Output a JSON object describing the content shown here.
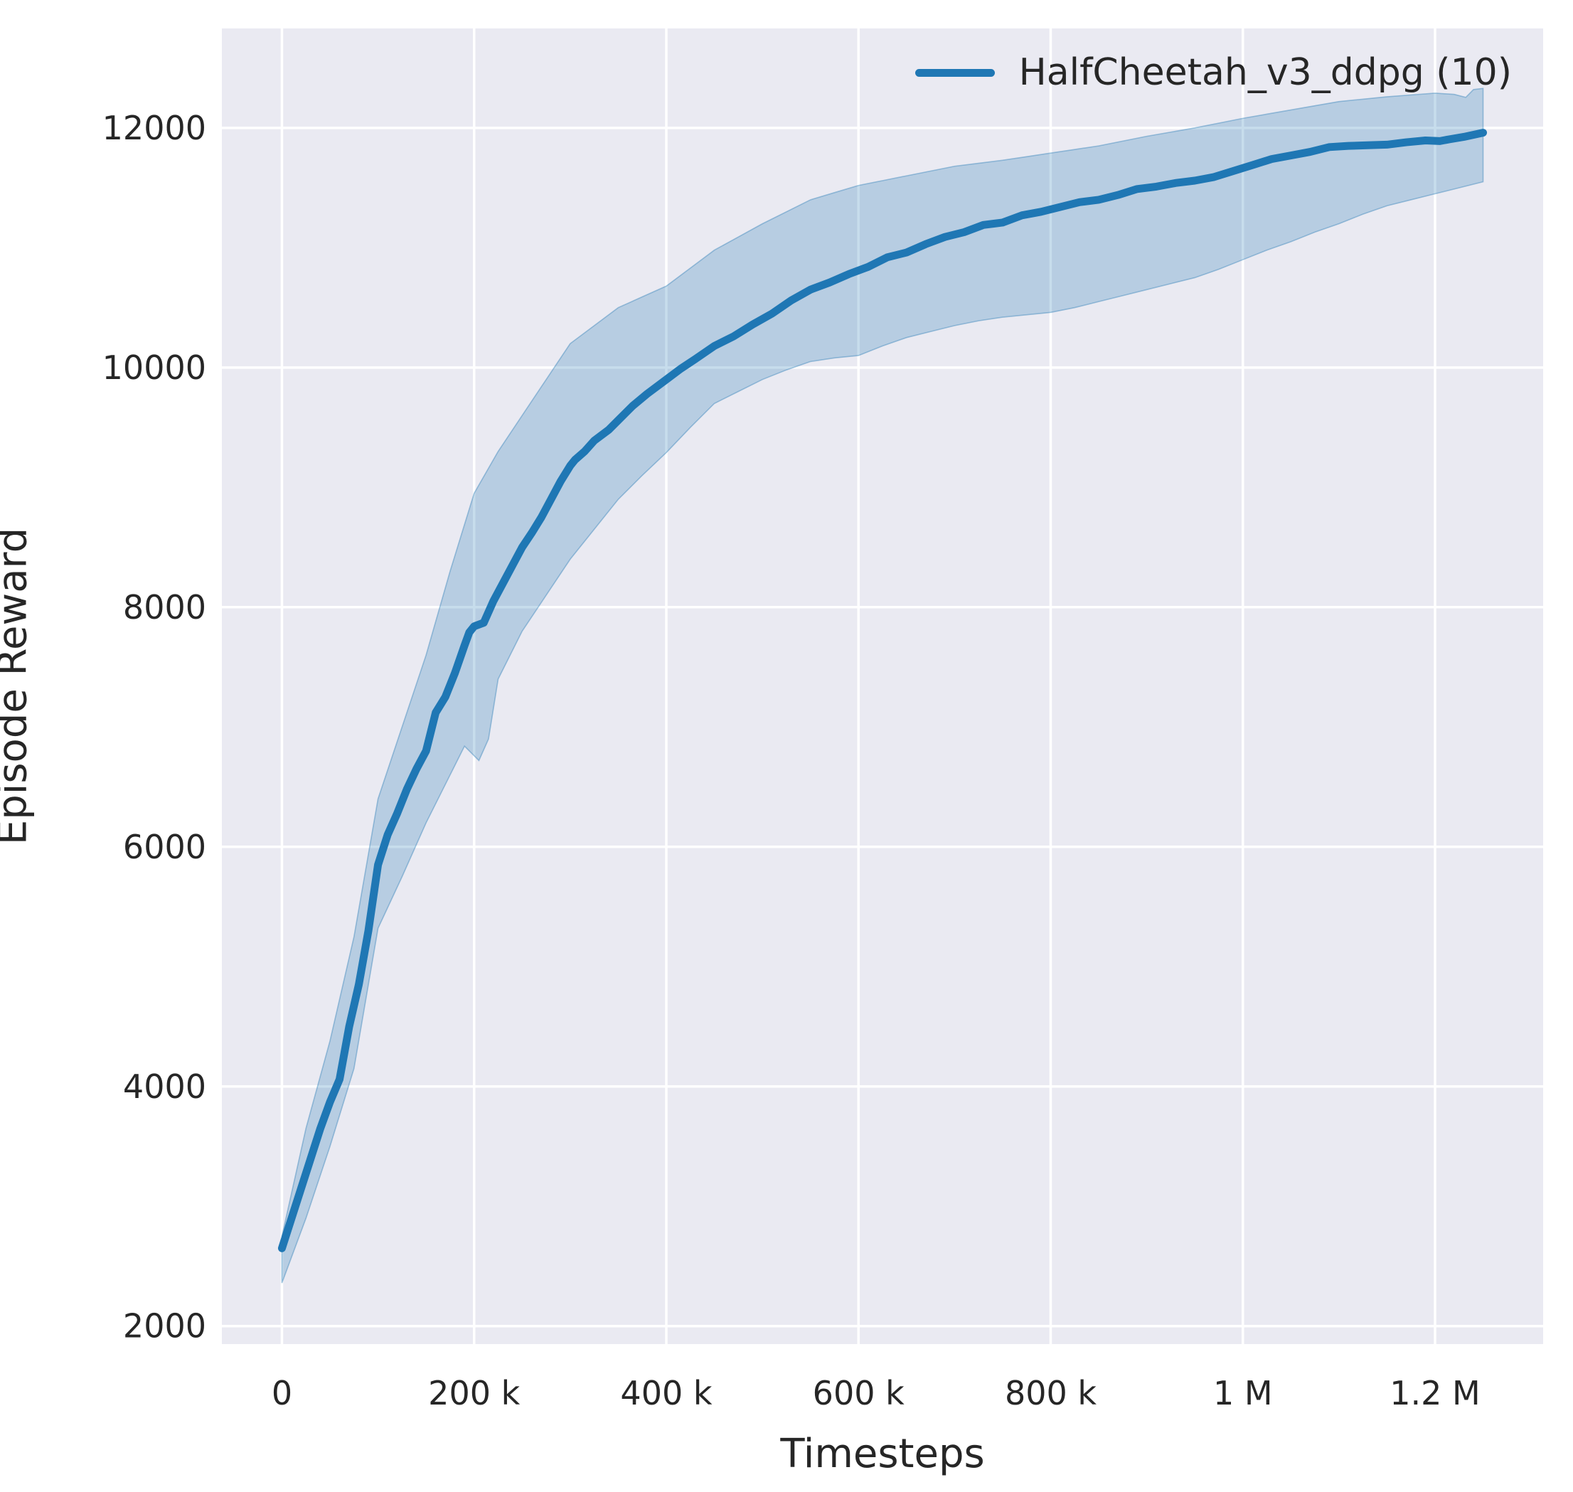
{
  "figure": {
    "background": "#ffffff",
    "axes_background": "#eaeaf2",
    "grid_color": "#ffffff",
    "text_color": "#262626"
  },
  "chart_data": {
    "type": "line",
    "title": "",
    "xlabel": "Timesteps",
    "ylabel": "Episode Reward",
    "grid": true,
    "legend": {
      "position": "upper right",
      "entries": [
        {
          "label": "HalfCheetah_v3_ddpg (10)",
          "color": "#1f77b4"
        }
      ]
    },
    "xlim": [
      -62500,
      1312500
    ],
    "ylim": [
      1850,
      12830
    ],
    "x_ticks": [
      {
        "value": 0,
        "label": "0"
      },
      {
        "value": 200000,
        "label": "200 k"
      },
      {
        "value": 400000,
        "label": "400 k"
      },
      {
        "value": 600000,
        "label": "600 k"
      },
      {
        "value": 800000,
        "label": "800 k"
      },
      {
        "value": 1000000,
        "label": "1 M"
      },
      {
        "value": 1200000,
        "label": "1.2 M"
      }
    ],
    "y_ticks": [
      {
        "value": 2000,
        "label": "2000"
      },
      {
        "value": 4000,
        "label": "4000"
      },
      {
        "value": 6000,
        "label": "6000"
      },
      {
        "value": 8000,
        "label": "8000"
      },
      {
        "value": 10000,
        "label": "10000"
      },
      {
        "value": 12000,
        "label": "12000"
      }
    ],
    "series": [
      {
        "name": "HalfCheetah_v3_ddpg (10)",
        "color": "#1f77b4",
        "band_fill": "rgba(31,119,180,0.25)",
        "band_edge": "rgba(31,119,180,0.38)",
        "mean": [
          [
            0,
            2650
          ],
          [
            10000,
            2900
          ],
          [
            20000,
            3150
          ],
          [
            30000,
            3400
          ],
          [
            40000,
            3650
          ],
          [
            50000,
            3870
          ],
          [
            60000,
            4060
          ],
          [
            70000,
            4500
          ],
          [
            80000,
            4850
          ],
          [
            90000,
            5300
          ],
          [
            100000,
            5850
          ],
          [
            110000,
            6100
          ],
          [
            120000,
            6280
          ],
          [
            130000,
            6480
          ],
          [
            140000,
            6650
          ],
          [
            150000,
            6800
          ],
          [
            160000,
            7120
          ],
          [
            170000,
            7250
          ],
          [
            180000,
            7450
          ],
          [
            190000,
            7680
          ],
          [
            195000,
            7790
          ],
          [
            200000,
            7840
          ],
          [
            210000,
            7870
          ],
          [
            220000,
            8050
          ],
          [
            230000,
            8200
          ],
          [
            240000,
            8350
          ],
          [
            250000,
            8500
          ],
          [
            260000,
            8620
          ],
          [
            270000,
            8750
          ],
          [
            280000,
            8900
          ],
          [
            290000,
            9050
          ],
          [
            300000,
            9180
          ],
          [
            305000,
            9230
          ],
          [
            315000,
            9300
          ],
          [
            325000,
            9390
          ],
          [
            340000,
            9480
          ],
          [
            350000,
            9560
          ],
          [
            365000,
            9680
          ],
          [
            380000,
            9780
          ],
          [
            400000,
            9900
          ],
          [
            415000,
            9990
          ],
          [
            430000,
            10070
          ],
          [
            450000,
            10180
          ],
          [
            470000,
            10260
          ],
          [
            490000,
            10360
          ],
          [
            510000,
            10450
          ],
          [
            530000,
            10560
          ],
          [
            550000,
            10650
          ],
          [
            570000,
            10710
          ],
          [
            590000,
            10780
          ],
          [
            610000,
            10840
          ],
          [
            630000,
            10920
          ],
          [
            650000,
            10960
          ],
          [
            670000,
            11030
          ],
          [
            690000,
            11090
          ],
          [
            710000,
            11130
          ],
          [
            730000,
            11190
          ],
          [
            750000,
            11210
          ],
          [
            770000,
            11270
          ],
          [
            790000,
            11300
          ],
          [
            810000,
            11340
          ],
          [
            830000,
            11380
          ],
          [
            850000,
            11400
          ],
          [
            870000,
            11440
          ],
          [
            890000,
            11490
          ],
          [
            910000,
            11510
          ],
          [
            930000,
            11540
          ],
          [
            950000,
            11560
          ],
          [
            970000,
            11590
          ],
          [
            990000,
            11640
          ],
          [
            1010000,
            11690
          ],
          [
            1030000,
            11740
          ],
          [
            1050000,
            11770
          ],
          [
            1070000,
            11800
          ],
          [
            1090000,
            11840
          ],
          [
            1110000,
            11850
          ],
          [
            1130000,
            11855
          ],
          [
            1150000,
            11860
          ],
          [
            1170000,
            11880
          ],
          [
            1190000,
            11895
          ],
          [
            1205000,
            11890
          ],
          [
            1215000,
            11905
          ],
          [
            1230000,
            11925
          ],
          [
            1250000,
            11960
          ]
        ],
        "band_lower": [
          [
            0,
            2360
          ],
          [
            25000,
            2900
          ],
          [
            50000,
            3500
          ],
          [
            75000,
            4150
          ],
          [
            100000,
            5320
          ],
          [
            125000,
            5750
          ],
          [
            150000,
            6200
          ],
          [
            175000,
            6600
          ],
          [
            190000,
            6840
          ],
          [
            205000,
            6720
          ],
          [
            215000,
            6900
          ],
          [
            225000,
            7400
          ],
          [
            250000,
            7800
          ],
          [
            275000,
            8100
          ],
          [
            300000,
            8400
          ],
          [
            325000,
            8650
          ],
          [
            350000,
            8900
          ],
          [
            375000,
            9100
          ],
          [
            400000,
            9290
          ],
          [
            425000,
            9500
          ],
          [
            450000,
            9700
          ],
          [
            475000,
            9800
          ],
          [
            500000,
            9900
          ],
          [
            525000,
            9980
          ],
          [
            550000,
            10050
          ],
          [
            575000,
            10080
          ],
          [
            600000,
            10100
          ],
          [
            625000,
            10180
          ],
          [
            650000,
            10250
          ],
          [
            675000,
            10300
          ],
          [
            700000,
            10350
          ],
          [
            725000,
            10390
          ],
          [
            750000,
            10420
          ],
          [
            775000,
            10440
          ],
          [
            800000,
            10460
          ],
          [
            825000,
            10500
          ],
          [
            850000,
            10550
          ],
          [
            875000,
            10600
          ],
          [
            900000,
            10650
          ],
          [
            925000,
            10700
          ],
          [
            950000,
            10750
          ],
          [
            975000,
            10820
          ],
          [
            1000000,
            10900
          ],
          [
            1025000,
            10980
          ],
          [
            1050000,
            11050
          ],
          [
            1075000,
            11130
          ],
          [
            1100000,
            11200
          ],
          [
            1125000,
            11280
          ],
          [
            1150000,
            11350
          ],
          [
            1175000,
            11400
          ],
          [
            1200000,
            11450
          ],
          [
            1225000,
            11500
          ],
          [
            1250000,
            11550
          ]
        ],
        "band_upper": [
          [
            0,
            2750
          ],
          [
            25000,
            3650
          ],
          [
            50000,
            4380
          ],
          [
            75000,
            5250
          ],
          [
            100000,
            6400
          ],
          [
            125000,
            7000
          ],
          [
            150000,
            7600
          ],
          [
            175000,
            8300
          ],
          [
            200000,
            8950
          ],
          [
            225000,
            9300
          ],
          [
            250000,
            9600
          ],
          [
            275000,
            9900
          ],
          [
            300000,
            10200
          ],
          [
            325000,
            10350
          ],
          [
            350000,
            10500
          ],
          [
            375000,
            10590
          ],
          [
            400000,
            10680
          ],
          [
            425000,
            10830
          ],
          [
            450000,
            10980
          ],
          [
            475000,
            11090
          ],
          [
            500000,
            11200
          ],
          [
            525000,
            11300
          ],
          [
            550000,
            11400
          ],
          [
            575000,
            11460
          ],
          [
            600000,
            11520
          ],
          [
            625000,
            11560
          ],
          [
            650000,
            11600
          ],
          [
            675000,
            11640
          ],
          [
            700000,
            11680
          ],
          [
            725000,
            11705
          ],
          [
            750000,
            11730
          ],
          [
            775000,
            11760
          ],
          [
            800000,
            11790
          ],
          [
            825000,
            11820
          ],
          [
            850000,
            11850
          ],
          [
            875000,
            11890
          ],
          [
            900000,
            11930
          ],
          [
            925000,
            11965
          ],
          [
            950000,
            12000
          ],
          [
            975000,
            12040
          ],
          [
            1000000,
            12080
          ],
          [
            1025000,
            12115
          ],
          [
            1050000,
            12150
          ],
          [
            1075000,
            12185
          ],
          [
            1100000,
            12220
          ],
          [
            1125000,
            12240
          ],
          [
            1150000,
            12260
          ],
          [
            1175000,
            12275
          ],
          [
            1200000,
            12290
          ],
          [
            1220000,
            12280
          ],
          [
            1232000,
            12255
          ],
          [
            1240000,
            12320
          ],
          [
            1250000,
            12330
          ]
        ]
      }
    ]
  }
}
